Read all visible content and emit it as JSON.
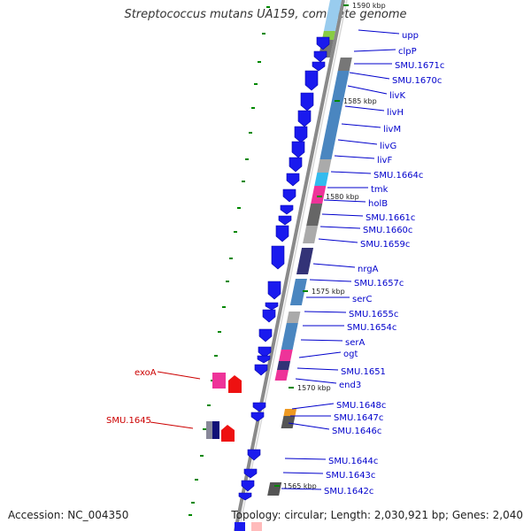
{
  "title": "Streptococcus mutans UA159, complete genome",
  "footer": {
    "accession": "Accession: NC_004350",
    "summary": "Topology: circular; Length: 2,030,921 bp; Genes: 2,040"
  },
  "colors": {
    "label_blue": "#0000cc",
    "label_red": "#cc0000",
    "backbone": "#8a8a8a",
    "tick": "#008800"
  },
  "kbp_marks": [
    "1590 kbp",
    "1585 kbp",
    "1580 kbp",
    "1575 kbp",
    "1570 kbp",
    "1565 kbp"
  ],
  "labels_right": [
    "upp",
    "clpP",
    "SMU.1671c",
    "SMU.1670c",
    "livK",
    "livH",
    "livM",
    "livG",
    "livF",
    "SMU.1664c",
    "tmk",
    "holB",
    "SMU.1661c",
    "SMU.1660c",
    "SMU.1659c",
    "nrgA",
    "SMU.1657c",
    "serC",
    "SMU.1655c",
    "SMU.1654c",
    "serA",
    "ogt",
    "SMU.1651",
    "end3",
    "SMU.1648c",
    "SMU.1647c",
    "SMU.1646c",
    "SMU.1644c",
    "SMU.1643c",
    "SMU.1642c"
  ],
  "labels_left": [
    "exoA",
    "SMU.1645"
  ]
}
